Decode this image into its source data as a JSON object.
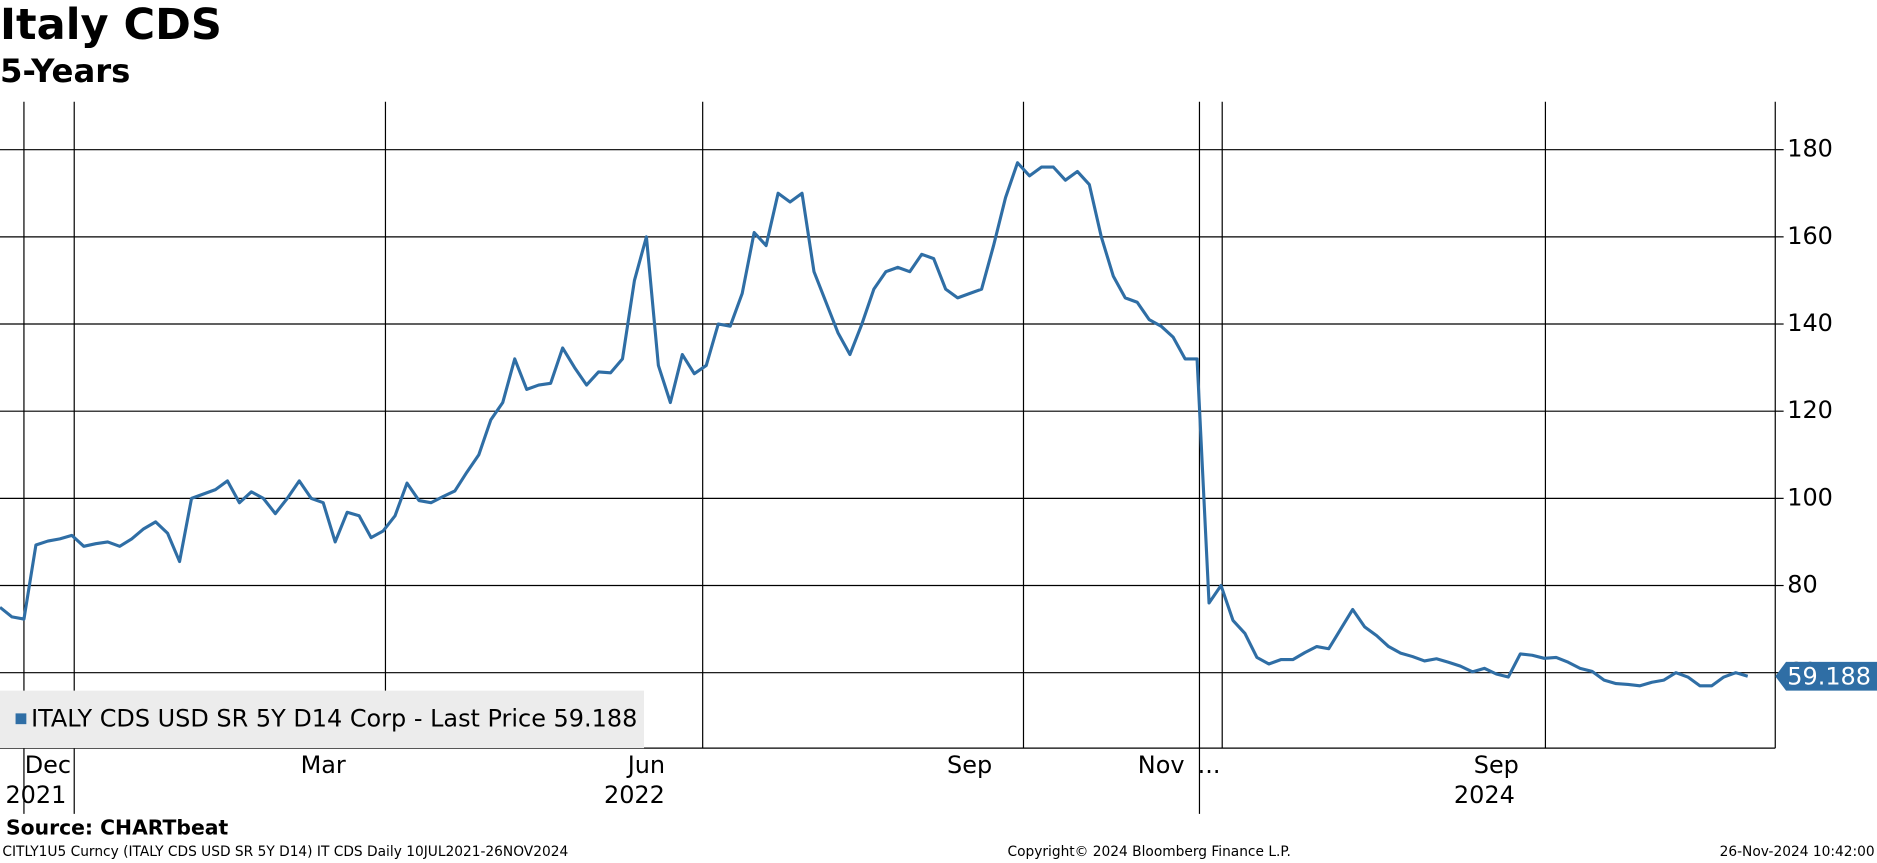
{
  "chart_data": {
    "type": "line",
    "title": "Italy CDS",
    "subtitle": "5-Years",
    "categories": [
      null,
      null,
      null,
      null,
      "Dec",
      null,
      null,
      null,
      null,
      null,
      null,
      null,
      null,
      null,
      null,
      null,
      null,
      null,
      null,
      null,
      null,
      null,
      null,
      null,
      null,
      null,
      null,
      "Mar",
      null,
      null,
      null,
      null,
      null,
      null,
      null,
      null,
      null,
      null,
      null,
      null,
      null,
      null,
      null,
      null,
      null,
      null,
      null,
      null,
      null,
      null,
      null,
      null,
      null,
      null,
      "Jun",
      null,
      null,
      null,
      null,
      null,
      null,
      null,
      null,
      null,
      null,
      null,
      null,
      null,
      null,
      null,
      null,
      null,
      null,
      null,
      null,
      null,
      null,
      null,
      null,
      null,
      null,
      "Sep",
      null,
      null,
      null,
      null,
      null,
      null,
      null,
      null,
      null,
      null,
      null,
      null,
      null,
      null,
      null,
      "Nov",
      null,
      null,
      null,
      "...",
      null,
      null,
      null,
      null,
      null,
      null,
      null,
      null,
      null,
      null,
      null,
      null,
      null,
      null,
      null,
      null,
      null,
      null,
      null,
      null,
      null,
      null,
      null,
      "Sep",
      null,
      null,
      null,
      null,
      null,
      null,
      null,
      null,
      null,
      null,
      null,
      null,
      null,
      null,
      null,
      null,
      null,
      null,
      null,
      null,
      null
    ],
    "years": [
      null,
      null,
      null,
      "2021",
      null,
      null,
      null,
      null,
      null,
      null,
      null,
      null,
      null,
      null,
      null,
      null,
      null,
      null,
      null,
      null,
      null,
      null,
      null,
      null,
      null,
      null,
      null,
      null,
      null,
      null,
      null,
      null,
      null,
      null,
      null,
      null,
      null,
      null,
      null,
      null,
      null,
      null,
      null,
      null,
      null,
      null,
      null,
      null,
      null,
      null,
      null,
      null,
      null,
      "2022",
      null,
      null,
      null,
      null,
      null,
      null,
      null,
      null,
      null,
      null,
      null,
      null,
      null,
      null,
      null,
      null,
      null,
      null,
      null,
      null,
      null,
      null,
      null,
      null,
      null,
      null,
      null,
      null,
      null,
      null,
      null,
      null,
      null,
      null,
      null,
      null,
      null,
      null,
      null,
      null,
      null,
      null,
      null,
      null,
      null,
      null,
      null,
      null,
      null,
      null,
      null,
      null,
      null,
      null,
      null,
      null,
      null,
      null,
      null,
      null,
      null,
      null,
      null,
      null,
      null,
      null,
      null,
      null,
      null,
      null,
      "2024",
      null,
      null,
      null,
      null,
      null,
      null,
      null,
      null,
      null,
      null,
      null,
      null,
      null,
      null,
      null,
      null,
      null,
      null,
      null,
      null,
      null,
      null
    ],
    "series": [
      {
        "name": "ITALY CDS USD SR 5Y D14 Corp - Last Price 59.188",
        "color": "#2f6ea5",
        "values": [
          75,
          72.8,
          72.3,
          89.3,
          90.2,
          90.7,
          91.5,
          89,
          89.6,
          90,
          89,
          90.7,
          93,
          94.6,
          92,
          85.5,
          100,
          101,
          102,
          104,
          99,
          101.5,
          100,
          96.5,
          100,
          104,
          100,
          99,
          90,
          96.8,
          96,
          91,
          92.5,
          96,
          103.5,
          99.5,
          99,
          100.4,
          101.7,
          106,
          110,
          118,
          122,
          132,
          125,
          126,
          126.4,
          134.5,
          130,
          126,
          129,
          128.8,
          132,
          150,
          160,
          130.5,
          122,
          133,
          128.6,
          130.5,
          140,
          139.5,
          147,
          161,
          158,
          170,
          168,
          170,
          152,
          145,
          138,
          133,
          140,
          148,
          152,
          153,
          152,
          156,
          155,
          148,
          146,
          147,
          148,
          158,
          169,
          177,
          174,
          176,
          176,
          173,
          175,
          172,
          160,
          151,
          146,
          145,
          141,
          139.5,
          137,
          132,
          132,
          76,
          80,
          72,
          69,
          63.5,
          62,
          63,
          63,
          64.6,
          66,
          65.5,
          70,
          74.5,
          70.5,
          68.5,
          66,
          64.5,
          63.7,
          62.7,
          63.2,
          62.4,
          61.5,
          60.2,
          61,
          59.7,
          59,
          64.3,
          64,
          63.3,
          63.5,
          62.4,
          61,
          60.3,
          58.3,
          57.5,
          57.3,
          57,
          57.8,
          58.3,
          60,
          59,
          57,
          57,
          59,
          60,
          59.188
        ]
      }
    ],
    "ylim": [
      42.7,
      191
    ],
    "yticks": [
      60,
      80,
      100,
      120,
      140,
      160,
      180
    ],
    "grid": true,
    "source": "Source: CHARTbeat",
    "footer_left": "CITLY1U5 Curncy (ITALY CDS USD SR 5Y D14) IT CDS  Daily 10JUL2021-26NOV2024",
    "footer_center": "Copyright© 2024 Bloomberg Finance L.P.",
    "footer_right": "26-Nov-2024 10:42:00"
  }
}
